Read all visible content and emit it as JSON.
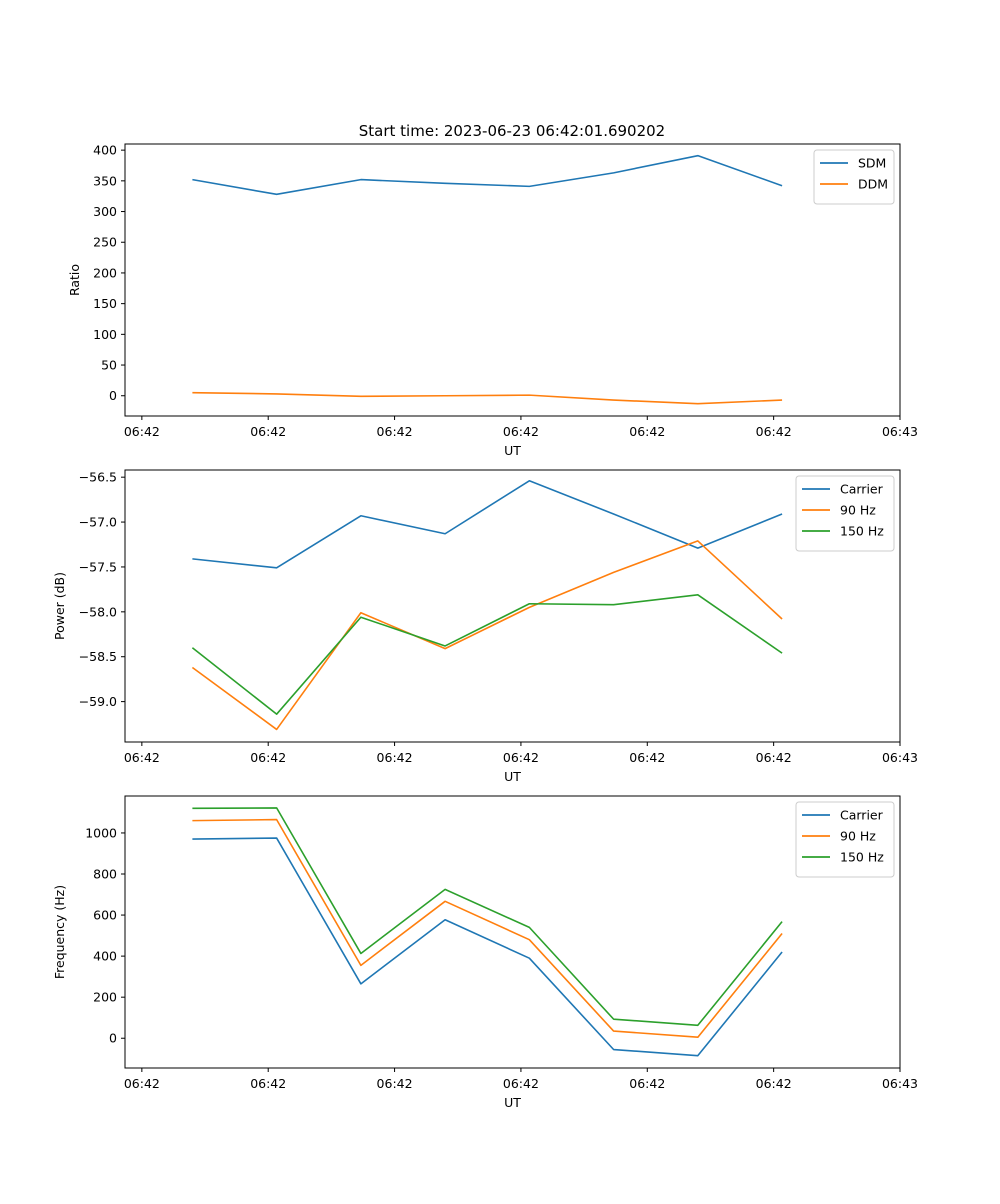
{
  "title": "Start time: 2023-06-23 06:42:01.690202",
  "chart_data": [
    {
      "type": "line",
      "x": [
        1,
        2,
        3,
        4,
        5,
        6,
        7,
        8
      ],
      "xlim": [
        0.2,
        9.4
      ],
      "xticks": [
        0.4,
        1.9,
        3.4,
        4.9,
        6.4,
        7.9,
        9.4
      ],
      "xticklabels": [
        "06:42",
        "06:42",
        "06:42",
        "06:42",
        "06:42",
        "06:42",
        "06:43"
      ],
      "xlabel": "UT",
      "ylabel": "Ratio",
      "ylim": [
        -33,
        410
      ],
      "yticks": [
        0,
        50,
        100,
        150,
        200,
        250,
        300,
        350,
        400
      ],
      "yticklabels": [
        "0",
        "50",
        "100",
        "150",
        "200",
        "250",
        "300",
        "350",
        "400"
      ],
      "legend": "top-right",
      "series": [
        {
          "name": "SDM",
          "color": "#1f77b4",
          "values": [
            352,
            328,
            352,
            346,
            341,
            363,
            391,
            342
          ]
        },
        {
          "name": "DDM",
          "color": "#ff7f0e",
          "values": [
            5,
            3,
            -1,
            0,
            1,
            -7,
            -13,
            -7
          ]
        }
      ]
    },
    {
      "type": "line",
      "x": [
        1,
        2,
        3,
        4,
        5,
        6,
        7,
        8
      ],
      "xlim": [
        0.2,
        9.4
      ],
      "xticks": [
        0.4,
        1.9,
        3.4,
        4.9,
        6.4,
        7.9,
        9.4
      ],
      "xticklabels": [
        "06:42",
        "06:42",
        "06:42",
        "06:42",
        "06:42",
        "06:42",
        "06:43"
      ],
      "xlabel": "UT",
      "ylabel": "Power (dB)",
      "ylim": [
        -59.45,
        -56.42
      ],
      "yticks": [
        -59.0,
        -58.5,
        -58.0,
        -57.5,
        -57.0,
        -56.5
      ],
      "yticklabels": [
        "−59.0",
        "−58.5",
        "−58.0",
        "−57.5",
        "−57.0",
        "−56.5"
      ],
      "legend": "top-right",
      "series": [
        {
          "name": "Carrier",
          "color": "#1f77b4",
          "values": [
            -57.41,
            -57.51,
            -56.93,
            -57.13,
            -56.54,
            -56.91,
            -57.29,
            -56.91
          ]
        },
        {
          "name": "90 Hz",
          "color": "#ff7f0e",
          "values": [
            -58.62,
            -59.31,
            -58.01,
            -58.41,
            -57.95,
            -57.56,
            -57.21,
            -58.08
          ]
        },
        {
          "name": "150 Hz",
          "color": "#2ca02c",
          "values": [
            -58.4,
            -59.14,
            -58.06,
            -58.38,
            -57.91,
            -57.92,
            -57.81,
            -58.46
          ]
        }
      ]
    },
    {
      "type": "line",
      "x": [
        1,
        2,
        3,
        4,
        5,
        6,
        7,
        8
      ],
      "xlim": [
        0.2,
        9.4
      ],
      "xticks": [
        0.4,
        1.9,
        3.4,
        4.9,
        6.4,
        7.9,
        9.4
      ],
      "xticklabels": [
        "06:42",
        "06:42",
        "06:42",
        "06:42",
        "06:42",
        "06:42",
        "06:43"
      ],
      "xlabel": "UT",
      "ylabel": "Frequency (Hz)",
      "ylim": [
        -145,
        1180
      ],
      "yticks": [
        0,
        200,
        400,
        600,
        800,
        1000
      ],
      "yticklabels": [
        "0",
        "200",
        "400",
        "600",
        "800",
        "1000"
      ],
      "legend": "top-right",
      "series": [
        {
          "name": "Carrier",
          "color": "#1f77b4",
          "values": [
            970,
            975,
            265,
            577,
            390,
            -55,
            -85,
            420
          ]
        },
        {
          "name": "90 Hz",
          "color": "#ff7f0e",
          "values": [
            1060,
            1065,
            355,
            667,
            480,
            35,
            5,
            510
          ]
        },
        {
          "name": "150 Hz",
          "color": "#2ca02c",
          "values": [
            1120,
            1122,
            413,
            725,
            540,
            93,
            63,
            568
          ]
        }
      ]
    }
  ]
}
